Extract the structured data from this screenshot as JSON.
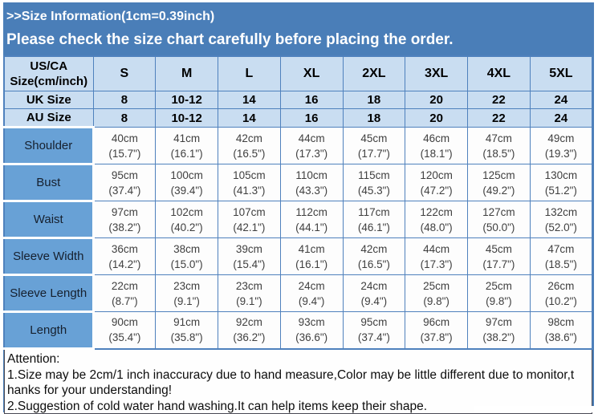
{
  "header": {
    "title": ">>Size Information(1cm=0.39inch)",
    "subtitle": "Please check the size chart carefully before placing the order."
  },
  "colors": {
    "panel_blue": "#4a7eb8",
    "header_cell_blue": "#c9ddf1",
    "label_cell_blue": "#68a1d6",
    "border_blue": "#4f81bd",
    "cell_text": "#3f3f3f"
  },
  "size_table": {
    "corner": {
      "line1": "US/CA",
      "line2": "Size(cm/inch)"
    },
    "size_columns": [
      "S",
      "M",
      "L",
      "XL",
      "2XL",
      "3XL",
      "4XL",
      "5XL"
    ],
    "region_rows": [
      {
        "label": "UK Size",
        "values": [
          "8",
          "10-12",
          "14",
          "16",
          "18",
          "20",
          "22",
          "24"
        ]
      },
      {
        "label": "AU Size",
        "values": [
          "8",
          "10-12",
          "14",
          "16",
          "18",
          "20",
          "22",
          "24"
        ]
      }
    ],
    "measurement_rows": [
      {
        "label": "Shoulder",
        "cm": [
          "40cm",
          "41cm",
          "42cm",
          "44cm",
          "45cm",
          "46cm",
          "47cm",
          "49cm"
        ],
        "inch": [
          "(15.7\")",
          "(16.1\")",
          "(16.5\")",
          "(17.3\")",
          "(17.7\")",
          "(18.1\")",
          "(18.5\")",
          "(19.3\")"
        ]
      },
      {
        "label": "Bust",
        "cm": [
          "95cm",
          "100cm",
          "105cm",
          "110cm",
          "115cm",
          "120cm",
          "125cm",
          "130cm"
        ],
        "inch": [
          "(37.4\")",
          "(39.4\")",
          "(41.3\")",
          "(43.3\")",
          "(45.3\")",
          "(47.2\")",
          "(49.2\")",
          "(51.2\")"
        ]
      },
      {
        "label": "Waist",
        "cm": [
          "97cm",
          "102cm",
          "107cm",
          "112cm",
          "117cm",
          "122cm",
          "127cm",
          "132cm"
        ],
        "inch": [
          "(38.2\")",
          "(40.2\")",
          "(42.1\")",
          "(44.1\")",
          "(46.1\")",
          "(48.0\")",
          "(50.0\")",
          "(52.0\")"
        ]
      },
      {
        "label": "Sleeve Width",
        "cm": [
          "36cm",
          "38cm",
          "39cm",
          "41cm",
          "42cm",
          "44cm",
          "45cm",
          "47cm"
        ],
        "inch": [
          "(14.2\")",
          "(15.0\")",
          "(15.4\")",
          "(16.1\")",
          "(16.5\")",
          "(17.3\")",
          "(17.7\")",
          "(18.5\")"
        ]
      },
      {
        "label": "Sleeve Length",
        "cm": [
          "22cm",
          "23cm",
          "23cm",
          "24cm",
          "24cm",
          "25cm",
          "25cm",
          "26cm"
        ],
        "inch": [
          "(8.7\")",
          "(9.1\")",
          "(9.1\")",
          "(9.4\")",
          "(9.4\")",
          "(9.8\")",
          "(9.8\")",
          "(10.2\")"
        ]
      },
      {
        "label": "Length",
        "cm": [
          "90cm",
          "91cm",
          "92cm",
          "93cm",
          "95cm",
          "96cm",
          "97cm",
          "98cm"
        ],
        "inch": [
          "(35.4\")",
          "(35.8\")",
          "(36.2\")",
          "(36.6\")",
          "(37.4\")",
          "(37.8\")",
          "(38.2\")",
          "(38.6\")"
        ]
      }
    ]
  },
  "attention": {
    "heading": "Attention:",
    "lines": [
      "1.Size may be 2cm/1 inch inaccuracy due to hand measure,Color may be little different due to monitor,t",
      "hanks for your understanding!",
      "2.Suggestion of cold water hand washing.It can help items keep their shape."
    ]
  }
}
